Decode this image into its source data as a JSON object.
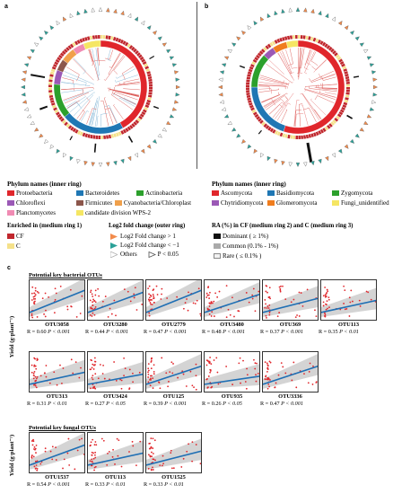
{
  "panels": {
    "a": "a",
    "b": "b",
    "c": "c"
  },
  "phylum_a": {
    "title": "Phylum names (inner ring)",
    "items": [
      {
        "label": "Protoebacteria",
        "color": "#e0262b"
      },
      {
        "label": "Bacteroidetes",
        "color": "#1f77b4"
      },
      {
        "label": "Actinobacteria",
        "color": "#2ca02c"
      },
      {
        "label": "Chloroflexi",
        "color": "#9b59b6"
      },
      {
        "label": "Firmicutes",
        "color": "#8c564b"
      },
      {
        "label": "Cyanobacteria/Chloroplast",
        "color": "#f0a04b"
      },
      {
        "label": "Planctomycetes",
        "color": "#f08bb3"
      },
      {
        "label": "candidate division WPS-2",
        "color": "#f5e663"
      }
    ]
  },
  "phylum_b": {
    "title": "Phylum names (inner ring)",
    "items": [
      {
        "label": "Ascomycota",
        "color": "#e0262b"
      },
      {
        "label": "Basidiomycota",
        "color": "#1f77b4"
      },
      {
        "label": "Zygomycota",
        "color": "#2ca02c"
      },
      {
        "label": "Chytridiomycota",
        "color": "#9b59b6"
      },
      {
        "label": "Glomeromycota",
        "color": "#f07d1e"
      },
      {
        "label": "Fungi_unidentified",
        "color": "#f5e663"
      }
    ]
  },
  "enriched": {
    "title": "Enriched in (medium ring 1)",
    "cf": "CF",
    "c": "C",
    "cf_color": "#c0272d",
    "c_color": "#f5e18a"
  },
  "log2": {
    "title": "Log2 fold change (outer ring)",
    "up": "Log2 Fold change > 1",
    "down": "Log2 Fold change < −1",
    "others": "Others",
    "p": "P < 0.05",
    "up_color": "#f28b4b",
    "down_color": "#2aa198"
  },
  "ra": {
    "title": "RA (%) in CF (medium ring 2) and C (medium ring 3)",
    "dominant": "Dominant ( ≥ 1%)",
    "common": "Common (0.1% - 1%)",
    "rare": "Rare ( ≤ 0.1% )"
  },
  "bact_title": "Potential key bacterial OTUs",
  "fung_title": "Potential key fungal OTUs",
  "yaxis": "Yield (g·plant⁻¹)",
  "plots": [
    {
      "name": "OTU3058",
      "r": "R = 0.60",
      "p": "P < 0.001",
      "slope": 0.55
    },
    {
      "name": "OTU3280",
      "r": "R = 0.44",
      "p": "P < 0.001",
      "slope": 0.5
    },
    {
      "name": "OTU2779",
      "r": "R = 0.47",
      "p": "P < 0.001",
      "slope": 0.55
    },
    {
      "name": "OTU3480",
      "r": "R = 0.48",
      "p": "P < 0.001",
      "slope": 0.45
    },
    {
      "name": "OTU369",
      "r": "R = 0.37",
      "p": "P < 0.001",
      "slope": 0.35
    },
    {
      "name": "OTU113",
      "r": "R = 0.35",
      "p": "P < 0.01",
      "slope": 0.3
    },
    {
      "name": "OTU313",
      "r": "R = 0.31",
      "p": "P < 0.01",
      "slope": 0.3
    },
    {
      "name": "OTU3424",
      "r": "R = 0.27",
      "p": "P < 0.05",
      "slope": 0.25
    },
    {
      "name": "OTU125",
      "r": "R = 0.39",
      "p": "P < 0.001",
      "slope": 0.45
    },
    {
      "name": "OTU935",
      "r": "R = 0.26",
      "p": "P < 0.05",
      "slope": 0.2
    },
    {
      "name": "OTU3336",
      "r": "R = 0.47",
      "p": "P < 0.001",
      "slope": 0.45
    },
    {
      "name": "OTU1537",
      "r": "R = 0.54",
      "p": "P < 0.001",
      "slope": 0.5
    },
    {
      "name": "OTU113",
      "r": "R = 0.33",
      "p": "P < 0.01",
      "slope": 0.3
    },
    {
      "name": "OTU1525",
      "r": "R = 0.33",
      "p": "P < 0.01",
      "slope": 0.35
    }
  ]
}
